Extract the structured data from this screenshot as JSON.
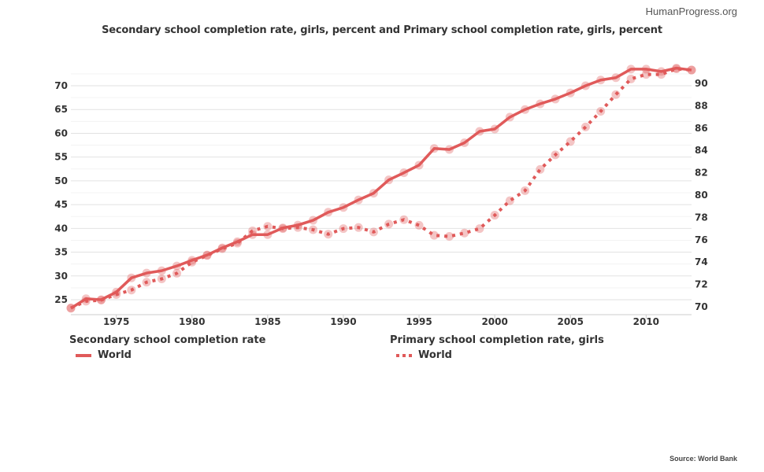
{
  "brand": "HumanProgress.org",
  "source": "Source: World Bank",
  "chart_data": {
    "type": "line",
    "title": "Secondary school completion rate, girls, percent and Primary school completion rate, girls, percent",
    "x": [
      1972,
      1973,
      1974,
      1975,
      1976,
      1977,
      1978,
      1979,
      1980,
      1981,
      1982,
      1983,
      1984,
      1985,
      1986,
      1987,
      1988,
      1989,
      1990,
      1991,
      1992,
      1993,
      1994,
      1995,
      1996,
      1997,
      1998,
      1999,
      2000,
      2001,
      2002,
      2003,
      2004,
      2005,
      2006,
      2007,
      2008,
      2009,
      2010,
      2011,
      2012,
      2013
    ],
    "xticks": [
      1975,
      1980,
      1985,
      1990,
      1995,
      2000,
      2005,
      2010
    ],
    "xlim": [
      1972,
      2013
    ],
    "y_left": {
      "ticks": [
        25,
        30,
        35,
        40,
        45,
        50,
        55,
        60,
        65,
        70
      ],
      "lim": [
        23.3,
        73.8
      ]
    },
    "y_right": {
      "ticks": [
        70,
        72,
        74,
        76,
        78,
        80,
        82,
        84,
        86,
        88,
        90
      ],
      "lim": [
        70,
        91.3
      ]
    },
    "grid": true,
    "legend_position": "bottom",
    "color": "#e05a5a",
    "series": [
      {
        "group": "Secondary school completion rate",
        "name": "World",
        "axis": "left",
        "style": "solid",
        "values": [
          23.2,
          25.2,
          25.0,
          26.6,
          29.6,
          30.6,
          31.1,
          32.1,
          33.3,
          34.4,
          35.9,
          37.2,
          38.7,
          38.7,
          40.1,
          40.7,
          41.7,
          43.4,
          44.4,
          46.0,
          47.4,
          50.2,
          51.7,
          53.3,
          56.8,
          56.6,
          58.0,
          60.4,
          60.9,
          63.4,
          65.0,
          66.2,
          67.2,
          68.5,
          70.0,
          71.2,
          71.7,
          73.5,
          73.5,
          73.0,
          73.7,
          73.3
        ]
      },
      {
        "group": "Primary school completion rate, girls",
        "name": "World",
        "axis": "right",
        "style": "dotted",
        "values": [
          69.9,
          70.5,
          70.6,
          71.1,
          71.5,
          72.2,
          72.5,
          73.0,
          74.0,
          74.6,
          75.2,
          75.7,
          76.8,
          77.2,
          77.0,
          77.1,
          76.9,
          76.5,
          77.0,
          77.1,
          76.7,
          77.4,
          77.8,
          77.3,
          76.4,
          76.3,
          76.6,
          77.0,
          78.2,
          79.5,
          80.4,
          82.3,
          83.6,
          84.8,
          86.1,
          87.5,
          89.0,
          90.4,
          90.8,
          90.8,
          91.3,
          91.2
        ]
      }
    ]
  }
}
